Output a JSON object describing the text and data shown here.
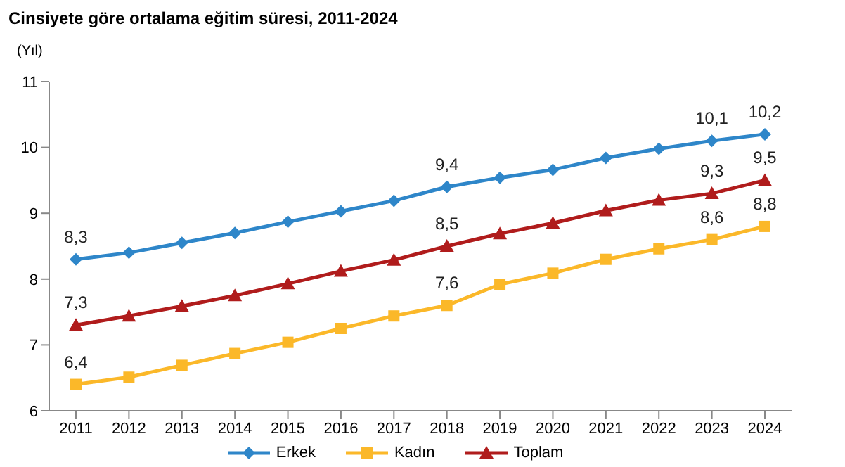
{
  "chart_data": {
    "type": "line",
    "title": "Cinsiyete göre ortalama eğitim süresi, 2011-2024",
    "ylabel": "(Yıl)",
    "categories": [
      "2011",
      "2012",
      "2013",
      "2014",
      "2015",
      "2016",
      "2017",
      "2018",
      "2019",
      "2020",
      "2021",
      "2022",
      "2023",
      "2024"
    ],
    "ylim": [
      6,
      11
    ],
    "yticks": [
      6,
      7,
      8,
      9,
      10,
      11
    ],
    "grid": false,
    "legend": "bottom",
    "line_style": "solid",
    "series": [
      {
        "name": "Erkek",
        "color": "#2e86c9",
        "marker": "diamond",
        "values": [
          8.3,
          8.4,
          8.55,
          8.7,
          8.87,
          9.03,
          9.19,
          9.4,
          9.54,
          9.66,
          9.84,
          9.98,
          10.1,
          10.2
        ],
        "value_labels": [
          "8,3",
          null,
          null,
          null,
          null,
          null,
          null,
          "9,4",
          null,
          null,
          null,
          null,
          "10,1",
          "10,2"
        ]
      },
      {
        "name": "Kadın",
        "color": "#fbb829",
        "marker": "square",
        "values": [
          6.4,
          6.51,
          6.69,
          6.87,
          7.04,
          7.25,
          7.44,
          7.6,
          7.92,
          8.09,
          8.3,
          8.46,
          8.6,
          8.8
        ],
        "value_labels": [
          "6,4",
          null,
          null,
          null,
          null,
          null,
          null,
          "7,6",
          null,
          null,
          null,
          null,
          "8,6",
          "8,8"
        ]
      },
      {
        "name": "Toplam",
        "color": "#b01c1c",
        "marker": "triangle",
        "values": [
          7.3,
          7.44,
          7.59,
          7.75,
          7.93,
          8.12,
          8.29,
          8.5,
          8.69,
          8.85,
          9.04,
          9.2,
          9.3,
          9.5
        ],
        "value_labels": [
          "7,3",
          null,
          null,
          null,
          null,
          null,
          null,
          "8,5",
          null,
          null,
          null,
          null,
          "9,3",
          "9,5"
        ]
      }
    ]
  }
}
